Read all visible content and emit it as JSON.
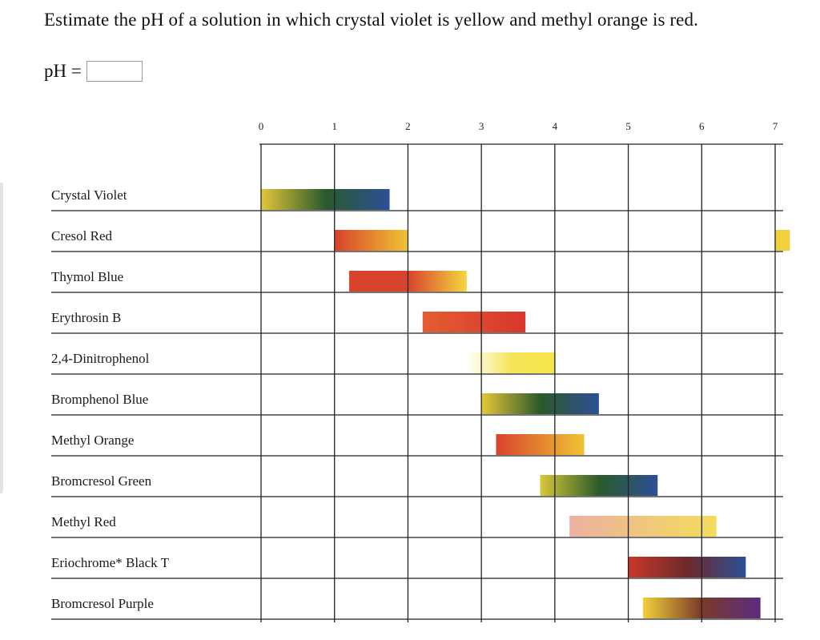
{
  "question": {
    "text": "Estimate the pH of a solution in which crystal violet is yellow and methyl orange is red.",
    "answer_label": "pH =",
    "answer_value": ""
  },
  "chart_data": {
    "type": "range-bar",
    "x_ticks": [
      "0",
      "1",
      "2",
      "3",
      "4",
      "5",
      "6",
      "7"
    ],
    "xlim": [
      0,
      7
    ],
    "grid": true,
    "categories": [
      "Crystal Violet",
      "Cresol Red",
      "Thymol Blue",
      "Erythrosin B",
      "2,4-Dinitrophenol",
      "Bromphenol Blue",
      "Methyl Orange",
      "Bromcresol Green",
      "Methyl Red",
      "Eriochrome* Black T",
      "Bromcresol Purple"
    ],
    "ranges": [
      {
        "indicator": "Crystal Violet",
        "start": 0.0,
        "end": 1.75,
        "colors": [
          "#e3c63a",
          "#2a5a2c",
          "#2c4f96"
        ]
      },
      {
        "indicator": "Cresol Red",
        "start": 1.0,
        "end": 2.0,
        "colors": [
          "#d8432c",
          "#f0c434"
        ]
      },
      {
        "indicator": "Cresol Red",
        "start": 7.0,
        "end": 7.2,
        "colors": [
          "#f2d13c",
          "#f2d13c"
        ]
      },
      {
        "indicator": "Thymol Blue",
        "start": 1.2,
        "end": 2.8,
        "colors": [
          "#d8432c",
          "#d8432c",
          "#f4d640"
        ]
      },
      {
        "indicator": "Erythrosin B",
        "start": 2.2,
        "end": 3.6,
        "colors": [
          "#e35d32",
          "#d8362b"
        ]
      },
      {
        "indicator": "2,4-Dinitrophenol",
        "start": 2.8,
        "end": 4.0,
        "colors": [
          "#ffffff",
          "#f6e55a",
          "#f6e54a"
        ]
      },
      {
        "indicator": "Bromphenol Blue",
        "start": 3.0,
        "end": 4.6,
        "colors": [
          "#e8c73a",
          "#2c5a2a",
          "#2c4f96"
        ]
      },
      {
        "indicator": "Methyl Orange",
        "start": 3.2,
        "end": 4.4,
        "colors": [
          "#d8432c",
          "#f0c434"
        ]
      },
      {
        "indicator": "Bromcresol Green",
        "start": 3.8,
        "end": 5.4,
        "colors": [
          "#d9c83a",
          "#2b5a2a",
          "#2c4f96"
        ]
      },
      {
        "indicator": "Methyl Red",
        "start": 4.2,
        "end": 6.2,
        "colors": [
          "#ecb1a2",
          "#f3dc5a"
        ]
      },
      {
        "indicator": "Eriochrome* Black T",
        "start": 5.0,
        "end": 6.6,
        "colors": [
          "#c9372a",
          "#6e2a2a",
          "#2c4f96"
        ]
      },
      {
        "indicator": "Bromcresol Purple",
        "start": 5.2,
        "end": 6.8,
        "colors": [
          "#f2d03a",
          "#7a3a2a",
          "#5b2c80"
        ]
      }
    ],
    "colors": {
      "grid": "#222222",
      "bar_edge": "none"
    }
  }
}
